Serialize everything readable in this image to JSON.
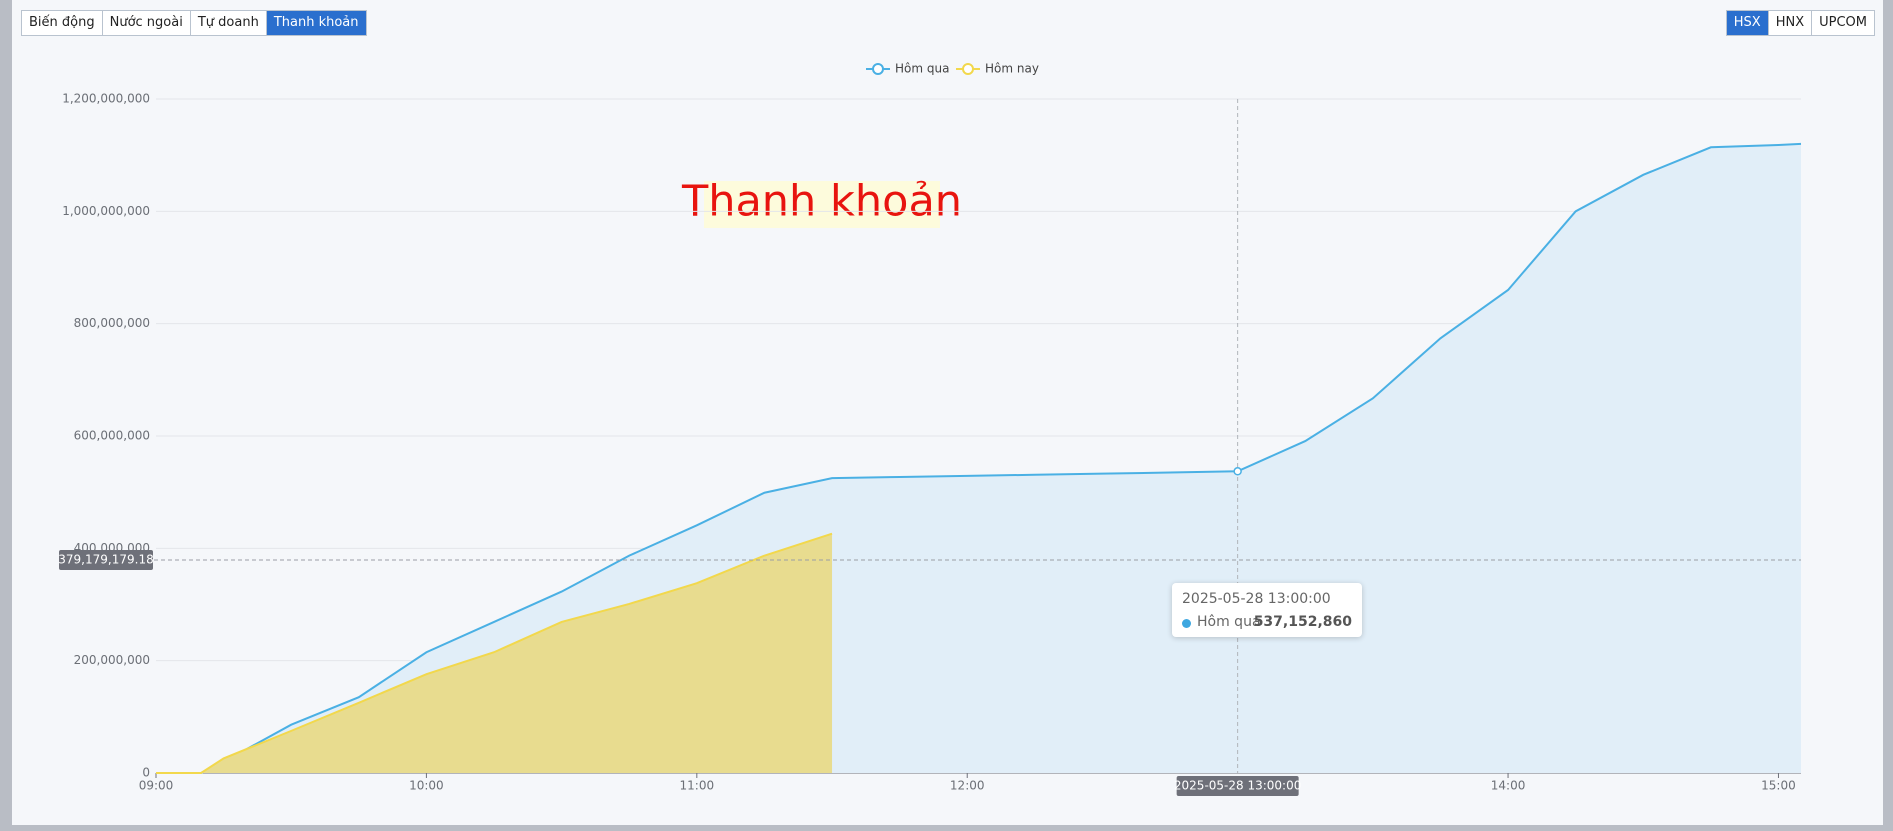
{
  "tabs": {
    "items": [
      "Biến động",
      "Nước ngoài",
      "Tự doanh",
      "Thanh khoản"
    ],
    "active": 3
  },
  "exchanges": {
    "items": [
      "HSX",
      "HNX",
      "UPCOM"
    ],
    "active": 0
  },
  "chart_data": {
    "type": "line",
    "watermark": "Thanh khoản",
    "x": [
      "09:00",
      "09:10",
      "09:15",
      "09:30",
      "09:45",
      "10:00",
      "10:15",
      "10:30",
      "10:45",
      "11:00",
      "11:15",
      "11:30",
      "11:45",
      "12:00",
      "12:15",
      "12:30",
      "12:45",
      "13:00",
      "13:15",
      "13:30",
      "13:45",
      "14:00",
      "14:15",
      "14:30",
      "14:45",
      "15:00",
      "15:05"
    ],
    "xlim": [
      "09:00",
      "15:05"
    ],
    "xticks": [
      "09:00",
      "10:00",
      "11:00",
      "12:00",
      "14:00",
      "15:00"
    ],
    "ylim": [
      0,
      1200000000
    ],
    "yticks": [
      0,
      {
        "value": 200000000,
        "label": "200,000,000"
      },
      {
        "value": 400000000,
        "label": "400,000,000"
      },
      {
        "value": 600000000,
        "label": "600,000,000"
      },
      {
        "value": 800000000,
        "label": "800,000,000"
      },
      {
        "value": 1000000000,
        "label": "1,000,000,000"
      },
      {
        "value": 1200000000,
        "label": "1,200,000,000"
      }
    ],
    "grid": true,
    "legend": "top",
    "series": [
      {
        "name": "Hôm qua",
        "color": "#4ab0e4",
        "area_color": "#e1eef8",
        "values": [
          0,
          0,
          20000000,
          86000000,
          135000000,
          215000000,
          269000000,
          323000000,
          387000000,
          441000000,
          499000000,
          525000000,
          527000000,
          529000000,
          531000000,
          533000000,
          535000000,
          537152860,
          591000000,
          667000000,
          774000000,
          860000000,
          1000000000,
          1065000000,
          1114000000,
          1118000000,
          1120000000
        ]
      },
      {
        "name": "Hôm nay",
        "color": "#f2d84c",
        "area_color": "#e8dc8f",
        "values": [
          0,
          0,
          26000000,
          75000000,
          125000000,
          176000000,
          215000000,
          269000000,
          301000000,
          338000000,
          387000000,
          426000000,
          null,
          null,
          null,
          null,
          null,
          null,
          null,
          null,
          null,
          null,
          null,
          null,
          null,
          null,
          null
        ]
      }
    ],
    "axis_pointer": {
      "x": "2025-05-28 13:00:00",
      "y": {
        "value": 379179179.18,
        "label": "379,179,179.18"
      }
    },
    "tooltip": {
      "value": {
        "value": 537152860,
        "label": "537,152,860"
      }
    }
  }
}
